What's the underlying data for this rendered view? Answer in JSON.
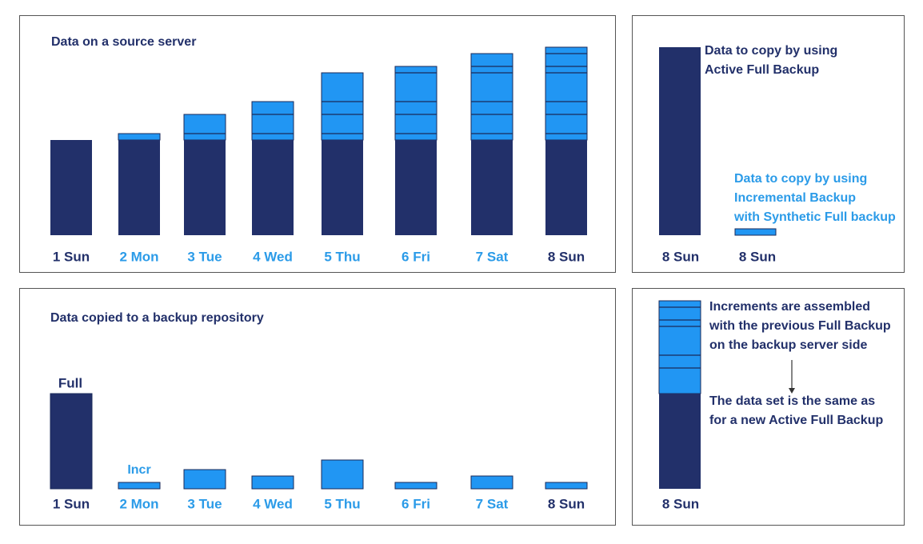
{
  "source_panel": {
    "title": "Data on a source server",
    "days": [
      "1 Sun",
      "2 Mon",
      "3 Tue",
      "4 Wed",
      "5 Thu",
      "6 Fri",
      "7 Sat",
      "8 Sun"
    ]
  },
  "active_full_panel": {
    "full_note": [
      "Data to copy by using",
      "Active Full Backup"
    ],
    "incremental_note": [
      "Data to copy by using",
      "Incremental Backup",
      "with Synthetic Full backup"
    ],
    "days": [
      "8 Sun",
      "8 Sun"
    ]
  },
  "backup_panel": {
    "title": "Data copied to a backup repository",
    "full_label": "Full",
    "incr_label": "Incr",
    "days": [
      "1 Sun",
      "2 Mon",
      "3 Tue",
      "4 Wed",
      "5 Thu",
      "6 Fri",
      "7 Sat",
      "8 Sun"
    ]
  },
  "synthetic_panel": {
    "note_top": [
      "Increments are assembled",
      "with the previous Full Backup",
      "on the backup server side"
    ],
    "note_bottom": [
      "The data set is the same as",
      "for a new Active Full Backup"
    ],
    "day": "8 Sun"
  }
}
